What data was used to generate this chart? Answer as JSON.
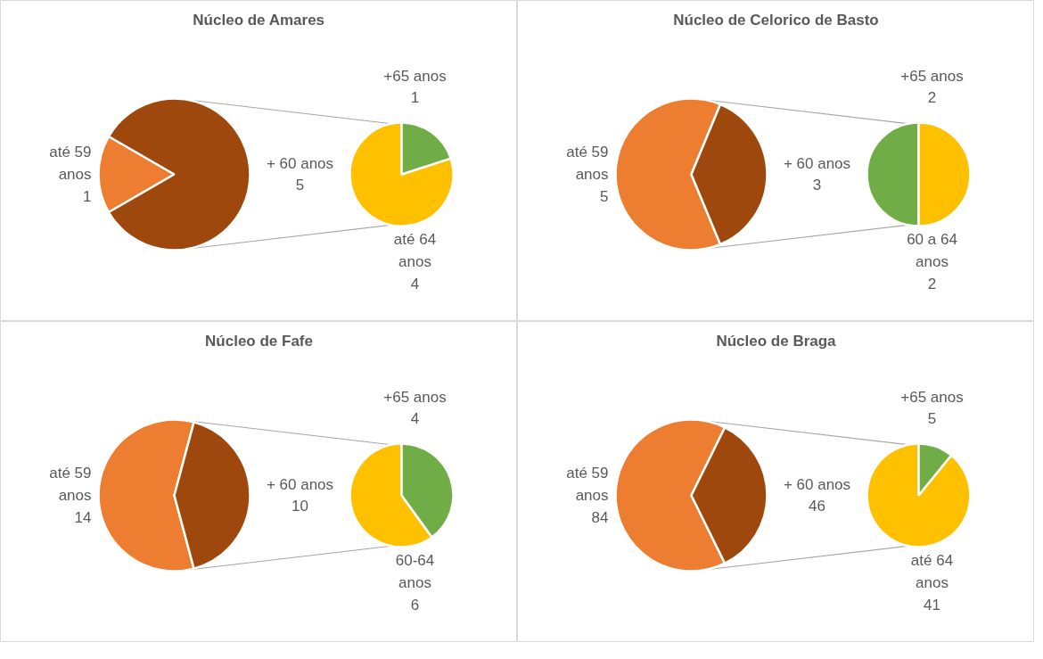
{
  "chart_data": [
    {
      "type": "pie",
      "title": "Núcleo de Amares",
      "data_labels": true,
      "categories": [
        "até 59 anos",
        "+ 60 anos"
      ],
      "values": [
        1,
        5
      ],
      "colors": [
        "#ed7d31",
        "#9e480e"
      ]
    },
    {
      "type": "pie",
      "data_labels": true,
      "categories": [
        "até 64 anos",
        "+65 anos"
      ],
      "values": [
        4,
        1
      ],
      "colors": [
        "#ffc000",
        "#70ad47"
      ]
    },
    {
      "type": "pie",
      "title": "Núcleo de Celorico de Basto",
      "data_labels": true,
      "categories": [
        "até 59 anos",
        "+ 60 anos"
      ],
      "values": [
        5,
        3
      ],
      "colors": [
        "#ed7d31",
        "#9e480e"
      ]
    },
    {
      "type": "pie",
      "data_labels": true,
      "categories": [
        "+65 anos",
        "60 a 64 anos"
      ],
      "values": [
        2,
        2
      ],
      "colors": [
        "#70ad47",
        "#ffc000"
      ]
    },
    {
      "type": "pie",
      "title": "Núcleo de Fafe",
      "data_labels": true,
      "categories": [
        "até 59 anos",
        "+ 60 anos"
      ],
      "values": [
        14,
        10
      ],
      "colors": [
        "#ed7d31",
        "#9e480e"
      ]
    },
    {
      "type": "pie",
      "data_labels": true,
      "categories": [
        "60-64 anos",
        "+65 anos"
      ],
      "values": [
        6,
        4
      ],
      "colors": [
        "#ffc000",
        "#70ad47"
      ]
    },
    {
      "type": "pie",
      "title": "Núcleo de Braga",
      "data_labels": true,
      "categories": [
        "até 59 anos",
        "+ 60 anos"
      ],
      "values": [
        84,
        46
      ],
      "colors": [
        "#ed7d31",
        "#9e480e"
      ]
    },
    {
      "type": "pie",
      "data_labels": true,
      "categories": [
        "até 64 anos",
        "+65 anos"
      ],
      "values": [
        41,
        5
      ],
      "colors": [
        "#ffc000",
        "#70ad47"
      ]
    }
  ]
}
